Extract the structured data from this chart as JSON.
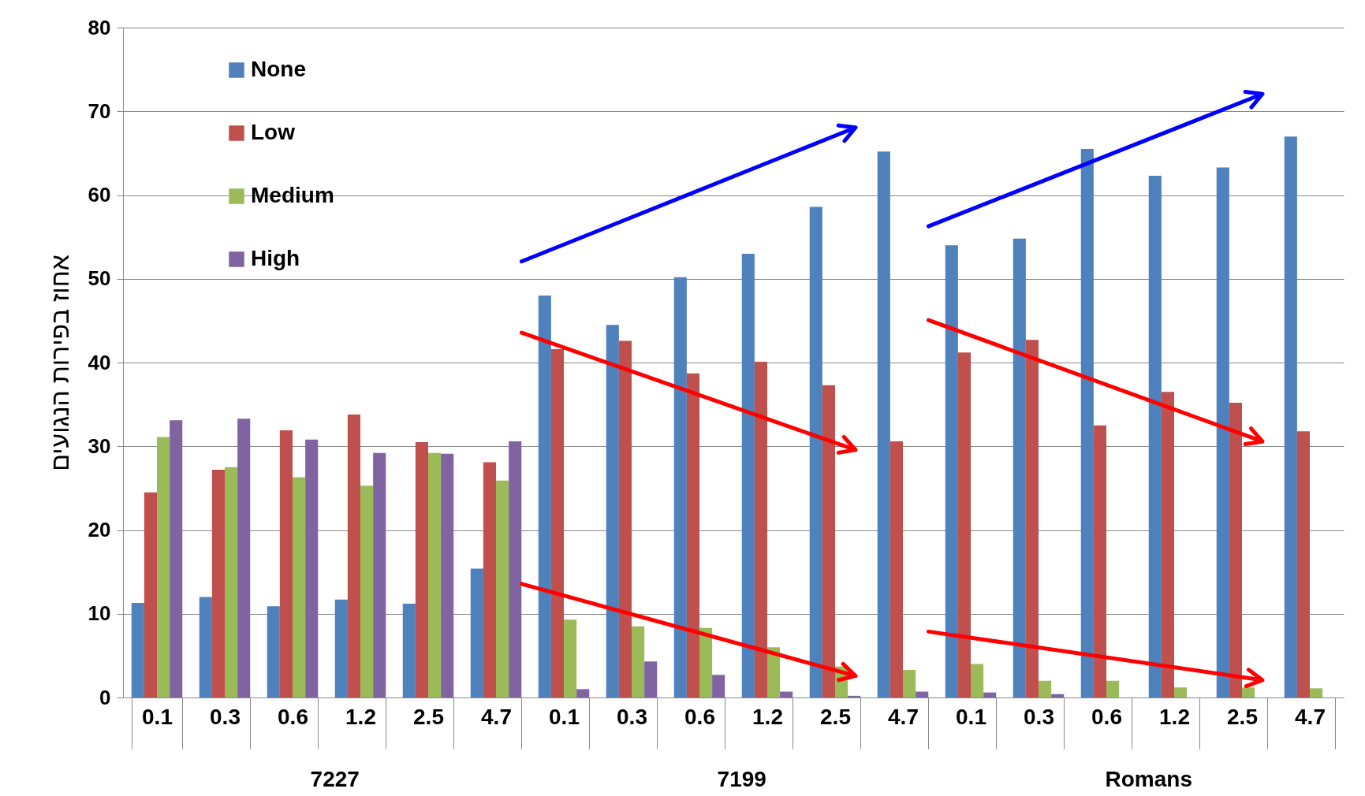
{
  "chart_data": {
    "type": "bar",
    "ylabel": "אחוז בפירות הנגועים",
    "categories": [
      "0.1",
      "0.3",
      "0.6",
      "1.2",
      "2.5",
      "4.7",
      "0.1",
      "0.3",
      "0.6",
      "1.2",
      "2.5",
      "4.7",
      "0.1",
      "0.3",
      "0.6",
      "1.2",
      "2.5",
      "4.7"
    ],
    "series": [
      {
        "name": "None",
        "color": "#4f81bd",
        "values": [
          11.3,
          12,
          10.9,
          11.7,
          11.2,
          15.4,
          48,
          44.5,
          50.2,
          53,
          58.6,
          65.2,
          54,
          54.8,
          65.5,
          62.3,
          63.3,
          67
        ]
      },
      {
        "name": "Low",
        "color": "#c0504d",
        "values": [
          24.5,
          27.2,
          31.9,
          33.8,
          30.5,
          28.1,
          41.6,
          42.6,
          38.7,
          40.1,
          37.3,
          30.6,
          41.2,
          42.7,
          32.5,
          36.5,
          35.2,
          31.8
        ]
      },
      {
        "name": "Medium",
        "color": "#9bbb59",
        "values": [
          31.1,
          27.5,
          26.3,
          25.3,
          29.2,
          25.9,
          9.3,
          8.5,
          8.3,
          6,
          3.7,
          3.3,
          4,
          2,
          2,
          1.2,
          1.2,
          1.1
        ]
      },
      {
        "name": "High",
        "color": "#8064a2",
        "values": [
          33.1,
          33.3,
          30.8,
          29.2,
          29.1,
          30.6,
          1,
          4.3,
          2.7,
          0.7,
          0.2,
          0.7,
          0.6,
          0.4,
          0,
          0,
          0,
          0
        ]
      }
    ],
    "annotations": [
      "7227",
      "7199",
      "Romans"
    ],
    "ylim": [
      0,
      80
    ],
    "yticks": [
      0,
      10,
      20,
      30,
      40,
      50,
      60,
      70,
      80
    ],
    "grid": "y",
    "legend": "top left"
  }
}
